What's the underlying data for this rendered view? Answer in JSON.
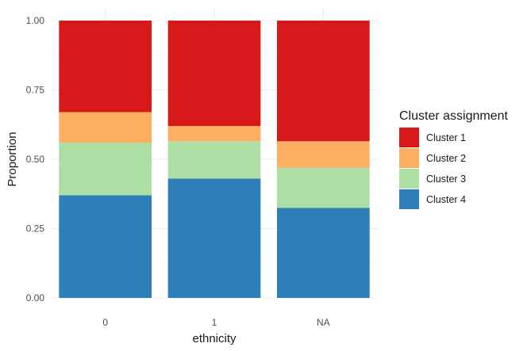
{
  "chart_data": {
    "type": "bar",
    "stacked": true,
    "xlabel": "ethnicity",
    "ylabel": "Proportion",
    "categories": [
      "0",
      "1",
      "NA"
    ],
    "ylim": [
      0,
      1
    ],
    "yticks": [
      "0.00",
      "0.25",
      "0.50",
      "0.75",
      "1.00"
    ],
    "grid": true,
    "legend": {
      "title": "Cluster assignment",
      "placement": "right"
    },
    "series": [
      {
        "name": "Cluster 4",
        "color": "#2c7fb8",
        "values": [
          0.37,
          0.43,
          0.325
        ]
      },
      {
        "name": "Cluster 3",
        "color": "#addfa4",
        "values": [
          0.19,
          0.135,
          0.145
        ]
      },
      {
        "name": "Cluster 2",
        "color": "#fdae61",
        "values": [
          0.11,
          0.055,
          0.095
        ]
      },
      {
        "name": "Cluster 1",
        "color": "#d7191c",
        "values": [
          0.33,
          0.38,
          0.435
        ]
      }
    ],
    "legend_order": [
      "Cluster 1",
      "Cluster 2",
      "Cluster 3",
      "Cluster 4"
    ]
  }
}
